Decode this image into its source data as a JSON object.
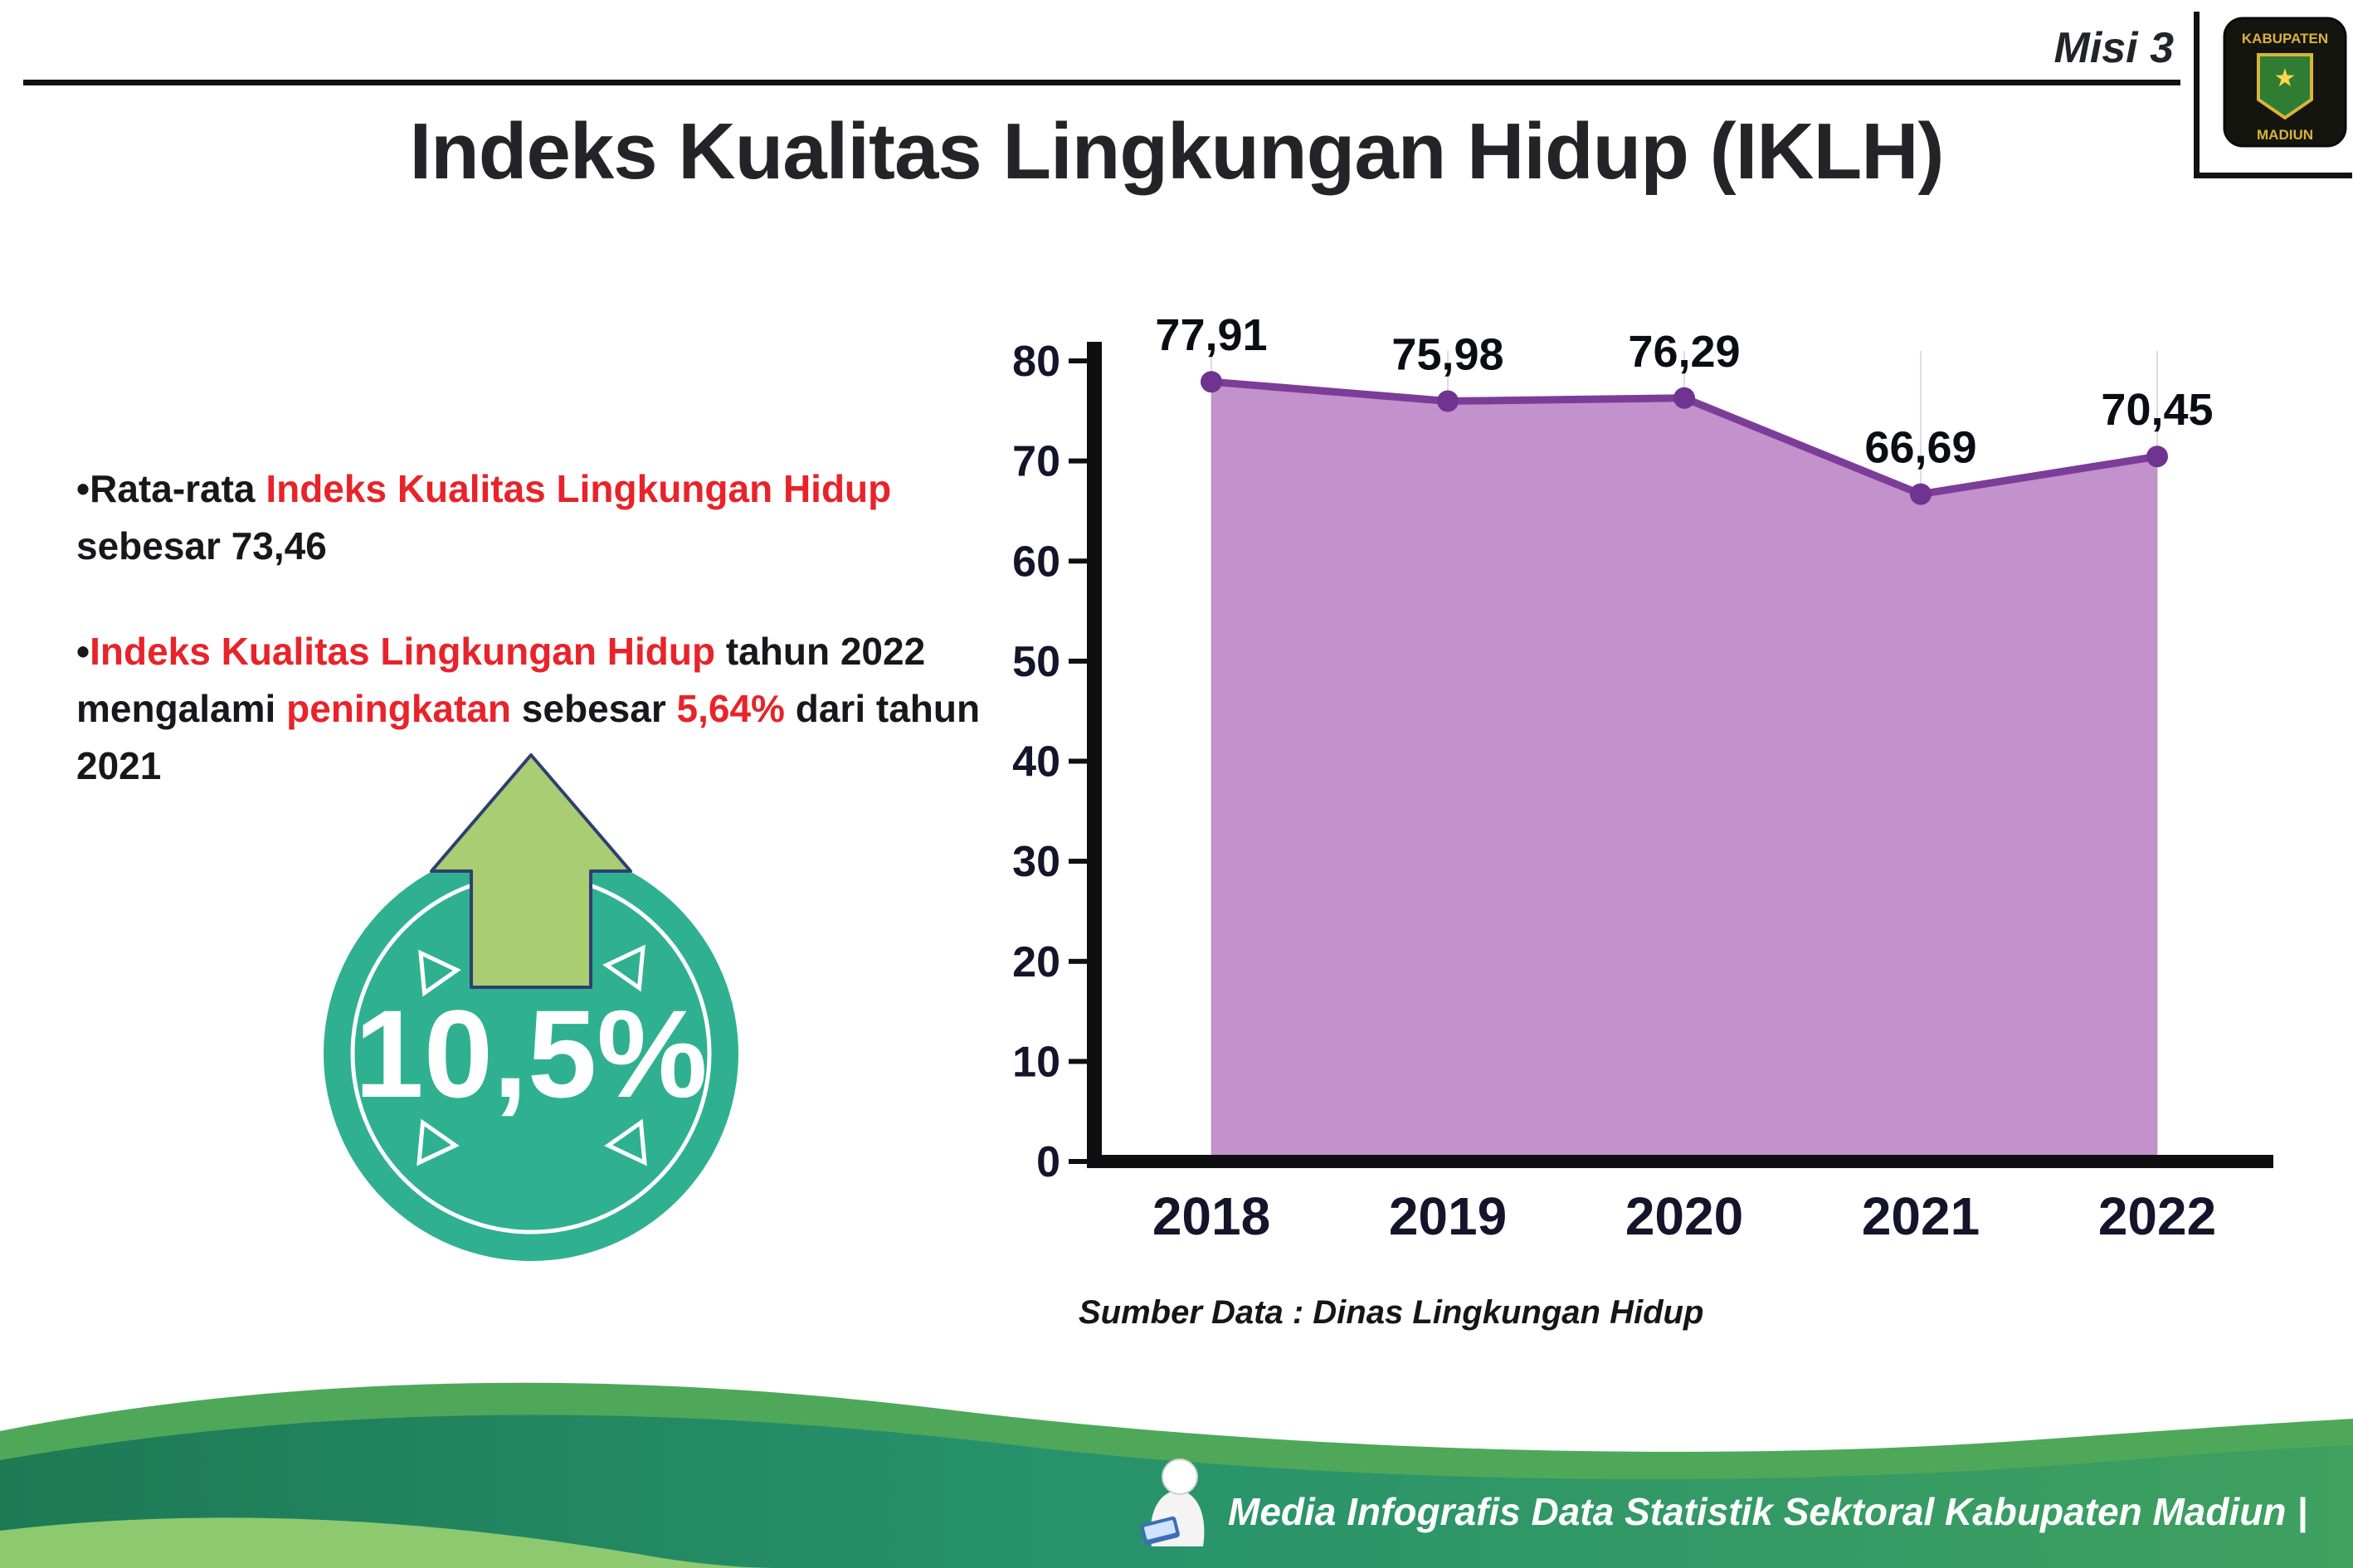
{
  "header": {
    "misi_label": "Misi 3",
    "title": "Indeks Kualitas Lingkungan Hidup (IKLH)",
    "logo": {
      "top": "KABUPATEN",
      "bottom": "MADIUN"
    }
  },
  "bullets": {
    "marker": "•",
    "b1": {
      "black1": "Rata-rata ",
      "red1": "Indeks Kualitas Lingkungan Hidup",
      "black2": " sebesar 73,46"
    },
    "b2": {
      "red1": "Indeks Kualitas Lingkungan Hidup",
      "black1": " tahun 2022 mengalami ",
      "red2": "peningkatan",
      "black2": " sebesar ",
      "red3": "5,64%",
      "black3": " dari tahun 2021"
    }
  },
  "badge": {
    "value": "10,5%"
  },
  "chart_data": {
    "type": "area",
    "categories": [
      "2018",
      "2019",
      "2020",
      "2021",
      "2022"
    ],
    "values": [
      77.91,
      75.98,
      76.29,
      66.69,
      70.45
    ],
    "value_labels": [
      "77,91",
      "75,98",
      "76,29",
      "66,69",
      "70,45"
    ],
    "ylim": [
      0,
      80
    ],
    "yticks": [
      0,
      10,
      20,
      30,
      40,
      50,
      60,
      70,
      80
    ],
    "title": "",
    "xlabel": "",
    "ylabel": "",
    "legend": "none",
    "grid": "faint vertical gridlines per year",
    "line_color": "#7c3d99",
    "fill_color": "#c391cb",
    "marker_color": "#6f3391",
    "source_note": "Sumber Data : Dinas Lingkungan Hidup"
  },
  "footer": {
    "credit": "Media Infografis Data Statistik Sektoral Kabupaten Madiun |"
  },
  "colors": {
    "accent_red": "#e8232a",
    "teal_badge": "#2fb191",
    "arrow_green": "#a8cd72",
    "footer_green_dark": "#1d7a55",
    "footer_green_mid": "#4fa85a",
    "footer_green_light": "#8cc96f"
  }
}
